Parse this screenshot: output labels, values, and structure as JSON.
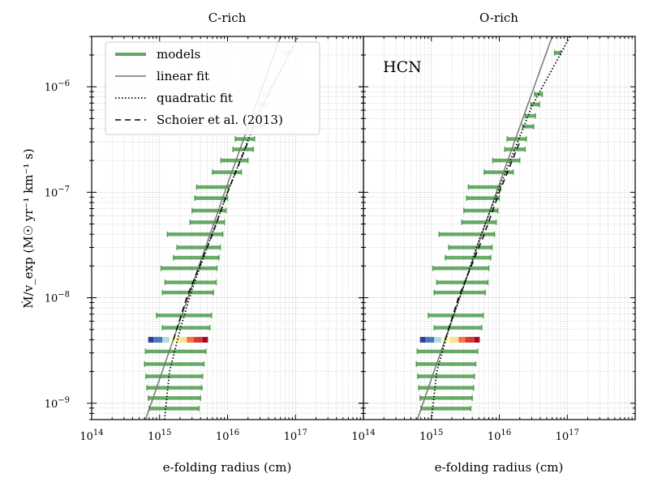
{
  "chart_data": [
    {
      "type": "line",
      "panel": "left",
      "title": "C-rich",
      "xlabel": "e-folding radius (cm)",
      "ylabel": "Ṁ/v_exp (M☉ yr⁻¹ km⁻¹ s)",
      "xscale": "log",
      "yscale": "log",
      "xlim": [
        100000000000000.0,
        1e+18
      ],
      "ylim": [
        7e-10,
        3e-06
      ],
      "x_ticks": [
        100000000000000.0,
        1000000000000000.0,
        1e+16,
        1e+17
      ],
      "x_tick_labels": [
        [
          "10",
          "14"
        ],
        [
          "10",
          "15"
        ],
        [
          "10",
          "16"
        ],
        [
          "10",
          "17"
        ]
      ],
      "y_ticks": [
        1e-09,
        1e-08,
        1e-07,
        1e-06
      ],
      "y_tick_labels": [
        [
          "10",
          "−9"
        ],
        [
          "10",
          "−8"
        ],
        [
          "10",
          "−7"
        ],
        [
          "10",
          "−6"
        ]
      ],
      "grid": true,
      "legend": {
        "position": "upper-left",
        "entries": [
          "models",
          "linear fit",
          "quadratic fit",
          "Schoier et al. (2013)"
        ]
      },
      "model_ranges": [
        {
          "y": 8.9e-10,
          "x_min": 700000000000000.0,
          "x_max": 3800000000000000.0
        },
        {
          "y": 1.12e-09,
          "x_min": 680000000000000.0,
          "x_max": 4000000000000000.0
        },
        {
          "y": 1.4e-09,
          "x_min": 650000000000000.0,
          "x_max": 4200000000000000.0
        },
        {
          "y": 1.8e-09,
          "x_min": 630000000000000.0,
          "x_max": 4300000000000000.0
        },
        {
          "y": 2.35e-09,
          "x_min": 600000000000000.0,
          "x_max": 4500000000000000.0
        },
        {
          "y": 3.1e-09,
          "x_min": 620000000000000.0,
          "x_max": 4800000000000000.0
        },
        {
          "y": 5.2e-09,
          "x_min": 1100000000000000.0,
          "x_max": 5500000000000000.0
        },
        {
          "y": 6.8e-09,
          "x_min": 900000000000000.0,
          "x_max": 5800000000000000.0
        },
        {
          "y": 1.12e-08,
          "x_min": 1100000000000000.0,
          "x_max": 6200000000000000.0
        },
        {
          "y": 1.4e-08,
          "x_min": 1200000000000000.0,
          "x_max": 6800000000000000.0
        },
        {
          "y": 1.9e-08,
          "x_min": 1050000000000000.0,
          "x_max": 7000000000000000.0
        },
        {
          "y": 2.4e-08,
          "x_min": 1600000000000000.0,
          "x_max": 7500000000000000.0
        },
        {
          "y": 3e-08,
          "x_min": 1800000000000000.0,
          "x_max": 7800000000000000.0
        },
        {
          "y": 4e-08,
          "x_min": 1300000000000000.0,
          "x_max": 8500000000000000.0
        },
        {
          "y": 5.2e-08,
          "x_min": 2800000000000000.0,
          "x_max": 9000000000000000.0
        },
        {
          "y": 6.7e-08,
          "x_min": 3000000000000000.0,
          "x_max": 9500000000000000.0
        },
        {
          "y": 8.8e-08,
          "x_min": 3300000000000000.0,
          "x_max": 1e+16
        },
        {
          "y": 1.12e-07,
          "x_min": 3500000000000000.0,
          "x_max": 1.05e+16
        },
        {
          "y": 1.55e-07,
          "x_min": 6000000000000000.0,
          "x_max": 1.6e+16
        },
        {
          "y": 2e-07,
          "x_min": 8000000000000000.0,
          "x_max": 2e+16
        },
        {
          "y": 2.55e-07,
          "x_min": 1.2e+16,
          "x_max": 2.4e+16
        },
        {
          "y": 3.2e-07,
          "x_min": 1.3e+16,
          "x_max": 2.5e+16
        },
        {
          "y": 4.2e-07,
          "x_min": 2.2e+16,
          "x_max": 3.2e+16
        },
        {
          "y": 5.3e-07,
          "x_min": 2.4e+16,
          "x_max": 3.4e+16
        },
        {
          "y": 6.8e-07,
          "x_min": 2.9e+16,
          "x_max": 3.9e+16
        },
        {
          "y": 8.5e-07,
          "x_min": 3.3e+16,
          "x_max": 4.3e+16
        },
        {
          "y": 2.1e-06,
          "x_min": 6.5e+16,
          "x_max": 8e+16
        }
      ],
      "faded_above_y": 3.5e-07,
      "highlight_row": {
        "y": 4e-09,
        "x_min": 700000000000000.0,
        "x_max": 5000000000000000.0
      },
      "linear_fit": {
        "points": [
          [
            620000000000000.0,
            7e-10
          ],
          [
            1000000000000000.0,
            1.7e-09
          ],
          [
            1e+16,
            1.2e-07
          ],
          [
            6e+16,
            3e-06
          ]
        ]
      },
      "quadratic_fit": {
        "points": [
          [
            1180000000000000.0,
            7e-10
          ],
          [
            1400000000000000.0,
            2e-09
          ],
          [
            2000000000000000.0,
            5e-09
          ],
          [
            3000000000000000.0,
            1.2e-08
          ],
          [
            5000000000000000.0,
            3e-08
          ],
          [
            1e+16,
            1e-07
          ],
          [
            3e+16,
            6e-07
          ],
          [
            1.1e+17,
            3e-06
          ]
        ]
      },
      "schoier_2013": {
        "points": [
          [
            1600000000000000.0,
            4e-09
          ],
          [
            2500000000000000.0,
            1e-08
          ],
          [
            6000000000000000.0,
            4e-08
          ],
          [
            1e+16,
            1e-07
          ],
          [
            2e+16,
            3e-07
          ]
        ]
      }
    },
    {
      "type": "line",
      "panel": "right",
      "title": "O-rich",
      "annotation": "HCN",
      "xlabel": "e-folding radius (cm)",
      "xscale": "log",
      "yscale": "log",
      "xlim": [
        100000000000000.0,
        1e+18
      ],
      "ylim": [
        7e-10,
        3e-06
      ],
      "x_ticks": [
        100000000000000.0,
        1000000000000000.0,
        1e+16,
        1e+17
      ],
      "x_tick_labels": [
        [
          "10",
          "14"
        ],
        [
          "10",
          "15"
        ],
        [
          "10",
          "16"
        ],
        [
          "10",
          "17"
        ]
      ],
      "grid": true,
      "model_ranges": [
        {
          "y": 8.9e-10,
          "x_min": 700000000000000.0,
          "x_max": 3800000000000000.0
        },
        {
          "y": 1.12e-09,
          "x_min": 680000000000000.0,
          "x_max": 4000000000000000.0
        },
        {
          "y": 1.4e-09,
          "x_min": 650000000000000.0,
          "x_max": 4200000000000000.0
        },
        {
          "y": 1.8e-09,
          "x_min": 630000000000000.0,
          "x_max": 4300000000000000.0
        },
        {
          "y": 2.35e-09,
          "x_min": 600000000000000.0,
          "x_max": 4500000000000000.0
        },
        {
          "y": 3.1e-09,
          "x_min": 620000000000000.0,
          "x_max": 4800000000000000.0
        },
        {
          "y": 5.2e-09,
          "x_min": 1100000000000000.0,
          "x_max": 5500000000000000.0
        },
        {
          "y": 6.8e-09,
          "x_min": 900000000000000.0,
          "x_max": 5800000000000000.0
        },
        {
          "y": 1.12e-08,
          "x_min": 1100000000000000.0,
          "x_max": 6200000000000000.0
        },
        {
          "y": 1.4e-08,
          "x_min": 1200000000000000.0,
          "x_max": 6800000000000000.0
        },
        {
          "y": 1.9e-08,
          "x_min": 1050000000000000.0,
          "x_max": 7000000000000000.0
        },
        {
          "y": 2.4e-08,
          "x_min": 1600000000000000.0,
          "x_max": 7500000000000000.0
        },
        {
          "y": 3e-08,
          "x_min": 1800000000000000.0,
          "x_max": 7800000000000000.0
        },
        {
          "y": 4e-08,
          "x_min": 1300000000000000.0,
          "x_max": 8500000000000000.0
        },
        {
          "y": 5.2e-08,
          "x_min": 2800000000000000.0,
          "x_max": 9000000000000000.0
        },
        {
          "y": 6.7e-08,
          "x_min": 3000000000000000.0,
          "x_max": 9500000000000000.0
        },
        {
          "y": 8.8e-08,
          "x_min": 3300000000000000.0,
          "x_max": 1e+16
        },
        {
          "y": 1.12e-07,
          "x_min": 3500000000000000.0,
          "x_max": 1.05e+16
        },
        {
          "y": 1.55e-07,
          "x_min": 6000000000000000.0,
          "x_max": 1.6e+16
        },
        {
          "y": 2e-07,
          "x_min": 8000000000000000.0,
          "x_max": 2e+16
        },
        {
          "y": 2.55e-07,
          "x_min": 1.2e+16,
          "x_max": 2.4e+16
        },
        {
          "y": 3.2e-07,
          "x_min": 1.3e+16,
          "x_max": 2.5e+16
        },
        {
          "y": 4.2e-07,
          "x_min": 2.2e+16,
          "x_max": 3.2e+16
        },
        {
          "y": 5.3e-07,
          "x_min": 2.4e+16,
          "x_max": 3.4e+16
        },
        {
          "y": 6.8e-07,
          "x_min": 2.9e+16,
          "x_max": 3.9e+16
        },
        {
          "y": 8.5e-07,
          "x_min": 3.3e+16,
          "x_max": 4.3e+16
        },
        {
          "y": 2.1e-06,
          "x_min": 6.5e+16,
          "x_max": 8e+16
        }
      ],
      "highlight_row": {
        "y": 4e-09,
        "x_min": 700000000000000.0,
        "x_max": 5000000000000000.0
      },
      "linear_fit": {
        "points": [
          [
            620000000000000.0,
            7e-10
          ],
          [
            1000000000000000.0,
            1.7e-09
          ],
          [
            1e+16,
            1.2e-07
          ],
          [
            6e+16,
            3e-06
          ]
        ]
      },
      "quadratic_fit": {
        "points": [
          [
            1000000000000000.0,
            7e-10
          ],
          [
            1200000000000000.0,
            2e-09
          ],
          [
            1800000000000000.0,
            5e-09
          ],
          [
            3000000000000000.0,
            1.3e-08
          ],
          [
            5000000000000000.0,
            3.5e-08
          ],
          [
            1e+16,
            1.1e-07
          ],
          [
            3e+16,
            6.5e-07
          ],
          [
            1.1e+17,
            3e-06
          ]
        ]
      },
      "schoier_2013": {
        "points": [
          [
            1600000000000000.0,
            4e-09
          ],
          [
            2500000000000000.0,
            1e-08
          ],
          [
            6000000000000000.0,
            4e-08
          ],
          [
            1e+16,
            1e-07
          ],
          [
            2e+16,
            3e-07
          ]
        ]
      }
    }
  ],
  "colors": {
    "models": "#2e8b2e",
    "linear_fit": "#777777",
    "quadratic_fit": "#000000",
    "schoier": "#000000",
    "grid": "#b0b0b0",
    "gradient": [
      "#313695",
      "#4575b4",
      "#abd9e9",
      "#ffffbf",
      "#fee090",
      "#f46d43",
      "#d73027",
      "#a50026"
    ]
  }
}
